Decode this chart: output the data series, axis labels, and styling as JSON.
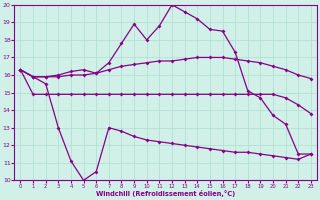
{
  "xlabel": "Windchill (Refroidissement éolien,°C)",
  "bg_color": "#d0f0e8",
  "line_color": "#880088",
  "grid_color": "#b0ddd0",
  "xlim_min": -0.5,
  "xlim_max": 23.5,
  "ylim_min": 10,
  "ylim_max": 20,
  "yticks": [
    10,
    11,
    12,
    13,
    14,
    15,
    16,
    17,
    18,
    19,
    20
  ],
  "xticks": [
    0,
    1,
    2,
    3,
    4,
    5,
    6,
    7,
    8,
    9,
    10,
    11,
    12,
    13,
    14,
    15,
    16,
    17,
    18,
    19,
    20,
    21,
    22,
    23
  ],
  "line_top_x": [
    0,
    1,
    2,
    3,
    4,
    5,
    6,
    7,
    8,
    9,
    10,
    11,
    12,
    13,
    14,
    15,
    16,
    17,
    18,
    19,
    20,
    21,
    22,
    23
  ],
  "line_top_y": [
    16.3,
    15.9,
    15.9,
    16.0,
    16.2,
    16.3,
    16.1,
    16.7,
    17.8,
    18.9,
    18.0,
    18.8,
    20.0,
    19.6,
    19.2,
    18.6,
    18.5,
    17.3,
    15.1,
    14.7,
    13.7,
    13.2,
    11.5,
    11.5
  ],
  "line_mid1_x": [
    0,
    1,
    2,
    3,
    4,
    5,
    6,
    7,
    8,
    9,
    10,
    11,
    12,
    13,
    14,
    15,
    16,
    17,
    18,
    19,
    20,
    21,
    22,
    23
  ],
  "line_mid1_y": [
    16.3,
    15.9,
    15.9,
    15.9,
    16.0,
    16.0,
    16.1,
    16.3,
    16.5,
    16.6,
    16.7,
    16.8,
    16.8,
    16.9,
    17.0,
    17.0,
    17.0,
    16.9,
    16.8,
    16.7,
    16.5,
    16.3,
    16.0,
    15.8
  ],
  "line_mid2_x": [
    0,
    1,
    2,
    3,
    4,
    5,
    6,
    7,
    8,
    9,
    10,
    11,
    12,
    13,
    14,
    15,
    16,
    17,
    18,
    19,
    20,
    21,
    22,
    23
  ],
  "line_mid2_y": [
    16.3,
    14.9,
    14.9,
    14.9,
    14.9,
    14.9,
    14.9,
    14.9,
    14.9,
    14.9,
    14.9,
    14.9,
    14.9,
    14.9,
    14.9,
    14.9,
    14.9,
    14.9,
    14.9,
    14.9,
    14.9,
    14.7,
    14.3,
    13.8
  ],
  "line_bot_x": [
    0,
    1,
    2,
    3,
    4,
    5,
    6,
    7,
    8,
    9,
    10,
    11,
    12,
    13,
    14,
    15,
    16,
    17,
    18,
    19,
    20,
    21,
    22,
    23
  ],
  "line_bot_y": [
    16.3,
    15.9,
    15.5,
    13.0,
    11.1,
    10.0,
    10.5,
    13.0,
    12.8,
    12.5,
    12.3,
    12.2,
    12.1,
    12.0,
    11.9,
    11.8,
    11.7,
    11.6,
    11.6,
    11.5,
    11.4,
    11.3,
    11.2,
    11.5
  ]
}
